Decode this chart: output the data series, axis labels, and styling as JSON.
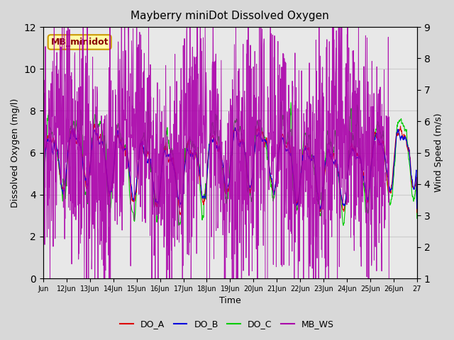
{
  "title": "Mayberry miniDot Dissolved Oxygen",
  "xlabel": "Time",
  "ylabel_left": "Dissolved Oxygen (mg/l)",
  "ylabel_right": "Wind Speed (m/s)",
  "annotation_text": "MB_minidot",
  "annotation_bg": "#ffffaa",
  "annotation_border": "#cc9900",
  "annotation_text_color": "#880000",
  "ylim_left": [
    0,
    12
  ],
  "ylim_right": [
    1.0,
    9.0
  ],
  "yticks_left": [
    0,
    2,
    4,
    6,
    8,
    10,
    12
  ],
  "yticks_right": [
    1.0,
    2.0,
    3.0,
    4.0,
    5.0,
    6.0,
    7.0,
    8.0,
    9.0
  ],
  "xtick_labels": [
    "Jun",
    "12Jun",
    "13Jun",
    "14Jun",
    "15Jun",
    "16Jun",
    "17Jun",
    "18Jun",
    "19Jun",
    "20Jun",
    "21Jun",
    "22Jun",
    "23Jun",
    "24Jun",
    "25Jun",
    "26Jun",
    "27"
  ],
  "grid_color": "#cccccc",
  "fig_bg_color": "#d8d8d8",
  "plot_bg_color": "#e8e8e8",
  "line_colors": {
    "DO_A": "#dd0000",
    "DO_B": "#0000dd",
    "DO_C": "#00cc00",
    "MB_WS": "#aa00aa"
  },
  "seed": 42,
  "n_days": 16
}
